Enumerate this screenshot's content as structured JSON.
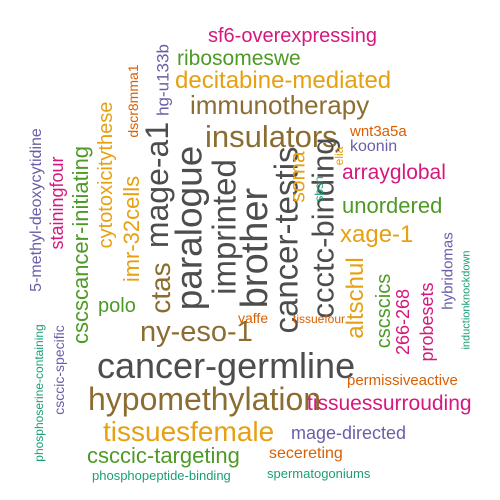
{
  "colors": {
    "dark_gray": "#4d4d4d",
    "brown": "#8c6d31",
    "orange_gold": "#e6a012",
    "green": "#4e9a26",
    "magenta": "#d6187e",
    "purple": "#6b5ea8",
    "orange": "#d95f02",
    "teal": "#1b9e77"
  },
  "words": [
    {
      "id": "sf6-overexpressing",
      "text": "sf6-overexpressing",
      "color": "magenta"
    },
    {
      "id": "ribosomeswe",
      "text": "ribosomeswe",
      "color": "green"
    },
    {
      "id": "decitabine-mediated",
      "text": "decitabine-mediated",
      "color": "orange_gold"
    },
    {
      "id": "immunotherapy",
      "text": "immunotherapy",
      "color": "brown"
    },
    {
      "id": "insulators",
      "text": "insulators",
      "color": "brown"
    },
    {
      "id": "wnt3a5a",
      "text": "wnt3a5a",
      "color": "orange"
    },
    {
      "id": "koonin",
      "text": "koonin",
      "color": "purple"
    },
    {
      "id": "arrayglobal",
      "text": "arrayglobal",
      "color": "magenta"
    },
    {
      "id": "unordered",
      "text": "unordered",
      "color": "green"
    },
    {
      "id": "xage-1",
      "text": "xage-1",
      "color": "orange_gold"
    },
    {
      "id": "hg-u133b",
      "text": "hg-u133b",
      "color": "purple"
    },
    {
      "id": "dscr8mma1",
      "text": "dscr8mma1",
      "color": "orange"
    },
    {
      "id": "mage-a1",
      "text": "mage-a1",
      "color": "dark_gray"
    },
    {
      "id": "paralogue",
      "text": "paralogue",
      "color": "dark_gray"
    },
    {
      "id": "imprinted",
      "text": "imprinted",
      "color": "dark_gray"
    },
    {
      "id": "brother",
      "text": "brother",
      "color": "dark_gray"
    },
    {
      "id": "cancer-testis",
      "text": "cancer-testis",
      "color": "dark_gray"
    },
    {
      "id": "ccctc-binding",
      "text": "ccctc-binding",
      "color": "dark_gray"
    },
    {
      "id": "soma",
      "text": "soma",
      "color": "orange_gold"
    },
    {
      "id": "sbsn",
      "text": "sbsn",
      "color": "teal"
    },
    {
      "id": "elia",
      "text": "elia",
      "color": "orange_gold"
    },
    {
      "id": "ctas",
      "text": "ctas",
      "color": "brown"
    },
    {
      "id": "imr-32cells",
      "text": "imr-32cells",
      "color": "orange_gold"
    },
    {
      "id": "cytotoxicitythese",
      "text": "cytotoxicitythese",
      "color": "orange_gold"
    },
    {
      "id": "cscscancer-initiating",
      "text": "cscscancer-initiating",
      "color": "green"
    },
    {
      "id": "stainingfour",
      "text": "stainingfour",
      "color": "magenta"
    },
    {
      "id": "5-methyl-deoxycytidine",
      "text": "5-methyl-deoxycytidine",
      "color": "purple"
    },
    {
      "id": "polo",
      "text": "polo",
      "color": "green"
    },
    {
      "id": "yaffe",
      "text": "yaffe",
      "color": "orange"
    },
    {
      "id": "tissuefour",
      "text": "tissuefour",
      "color": "orange"
    },
    {
      "id": "altschul",
      "text": "altschul",
      "color": "orange_gold"
    },
    {
      "id": "cscscics",
      "text": "cscscics",
      "color": "green"
    },
    {
      "id": "266-268",
      "text": "266-268",
      "color": "magenta"
    },
    {
      "id": "probesets",
      "text": "probesets",
      "color": "magenta"
    },
    {
      "id": "hybridomas",
      "text": "hybridomas",
      "color": "purple"
    },
    {
      "id": "inductionknockdown",
      "text": "inductionknockdown",
      "color": "teal"
    },
    {
      "id": "ny-eso-1",
      "text": "ny-eso-1",
      "color": "brown"
    },
    {
      "id": "cancer-germline",
      "text": "cancer-germline",
      "color": "dark_gray"
    },
    {
      "id": "permissiveactive",
      "text": "permissiveactive",
      "color": "orange"
    },
    {
      "id": "hypomethylation",
      "text": "hypomethylation",
      "color": "brown"
    },
    {
      "id": "tissuessurrouding",
      "text": "tissuessurrouding",
      "color": "magenta"
    },
    {
      "id": "tissuesfemale",
      "text": "tissuesfemale",
      "color": "orange_gold"
    },
    {
      "id": "mage-directed",
      "text": "mage-directed",
      "color": "purple"
    },
    {
      "id": "csccic-targeting",
      "text": "csccic-targeting",
      "color": "green"
    },
    {
      "id": "secereting",
      "text": "secereting",
      "color": "orange"
    },
    {
      "id": "phosphopeptide-binding",
      "text": "phosphopeptide-binding",
      "color": "teal"
    },
    {
      "id": "spermatogoniums",
      "text": "spermatogoniums",
      "color": "teal"
    },
    {
      "id": "csccic-specific",
      "text": "csccic-specific",
      "color": "purple"
    },
    {
      "id": "phosphoserine-containing",
      "text": "phosphoserine-containing",
      "color": "teal"
    }
  ]
}
